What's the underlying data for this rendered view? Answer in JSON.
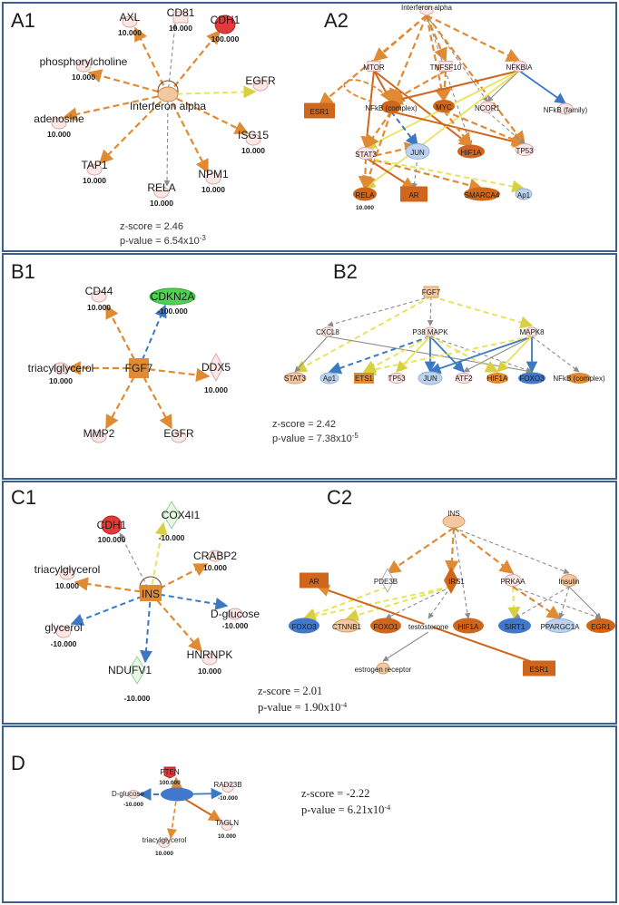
{
  "panels": {
    "A1": {
      "label": "A1",
      "hub": "Interferon alpha",
      "nodes": [
        "AXL",
        "CD81",
        "CDH1",
        "phosphorylcholine",
        "EGFR",
        "adenosine",
        "ISG15",
        "TAP1",
        "RELA",
        "NPM1"
      ],
      "values": {
        "AXL": "10.000",
        "CD81": "10.000",
        "CDH1": "100.000",
        "phosphorylcholine": "10.000",
        "adenosine": "10.000",
        "ISG15": "10.000",
        "TAP1": "10.000",
        "RELA": "10.000",
        "NPM1": "10.000"
      },
      "z_score": "z-score = 2.46",
      "p_value": "p-value = 6.54x10",
      "p_exp": "-3"
    },
    "A2": {
      "label": "A2",
      "nodes": [
        "Interferon alpha",
        "MTOR",
        "TNFSF10",
        "NFKBIA",
        "ESR1",
        "NFkB (complex)",
        "MYC",
        "NCOR1",
        "NFkB (family)",
        "JUN",
        "HIF1A",
        "TP53",
        "STAT3",
        "RELA",
        "AR",
        "SMARCA4",
        "Ap1"
      ],
      "values": {
        "RELA": "10.000"
      }
    },
    "B1": {
      "label": "B1",
      "hub": "FGF7",
      "nodes": [
        "CD44",
        "CDKN2A",
        "triacylglycerol",
        "DDX5",
        "MMP2",
        "EGFR"
      ],
      "values": {
        "CD44": "10.000",
        "CDKN2A": "-100.000",
        "triacylglycerol": "10.000",
        "DDX5": "10.000"
      }
    },
    "B2": {
      "label": "B2",
      "nodes": [
        "FGF7",
        "CXCL8",
        "P38 MAPK",
        "MAPK8",
        "STAT3",
        "Ap1",
        "ETS1",
        "TP53",
        "JUN",
        "ATF2",
        "HIF1A",
        "FOXO3",
        "NFkB (complex)"
      ],
      "z_score": "z-score = 2.42",
      "p_value": "p-value = 7.38x10",
      "p_exp": "-5"
    },
    "C1": {
      "label": "C1",
      "hub": "INS",
      "nodes": [
        "CDH1",
        "COX4I1",
        "CRABP2",
        "triacylglycerol",
        "D-glucose",
        "glycerol",
        "NDUFV1",
        "HNRNPK"
      ],
      "values": {
        "CDH1": "100.000",
        "COX4I1": "-10.000",
        "CRABP2": "10.000",
        "triacylglycerol": "10.000",
        "D-glucose": "-10.000",
        "glycerol": "-10.000",
        "NDUFV1": "-10.000",
        "HNRNPK": "10.000"
      }
    },
    "C2": {
      "label": "C2",
      "nodes": [
        "INS",
        "AR",
        "PDE3B",
        "IRS1",
        "PRKAA",
        "Insulin",
        "FOXO3",
        "CTNNB1",
        "FOXO1",
        "testosterone",
        "HIF1A",
        "SIRT1",
        "PPARGC1A",
        "EGR1",
        "estrogen receptor",
        "ESR1"
      ],
      "z_score": "z-score = 2.01",
      "p_value": "p-value = 1.90x10",
      "p_exp": "-4"
    },
    "D": {
      "label": "D",
      "hub": "INSR",
      "nodes": [
        "PTEN",
        "RAD23B",
        "D-glucose",
        "TAGLN",
        "triacylglycerol"
      ],
      "values": {
        "PTEN": "100.000",
        "RAD23B": "-10.000",
        "D-glucose": "-10.000",
        "TAGLN": "10.000",
        "triacylglycerol": "10.000"
      },
      "z_score": "z-score = -2.22",
      "p_value": "p-value = 6.21x10",
      "p_exp": "-4"
    }
  },
  "colors": {
    "border": "#3d5f8c",
    "orange": "#e08a33",
    "orange_dark": "#d0661c",
    "orange_light": "#f3c8a0",
    "yellow": "#e6e35c",
    "blue": "#3b79c5",
    "blue_node": "#3f78cc",
    "blue_light": "#bcd2ee",
    "gray": "#8c8c8c",
    "red": "#e03a3a",
    "green": "#4fd24f",
    "pink": "#fbe7e6",
    "pink_border": "#d9a3a0",
    "green_border": "#8fcf8f"
  }
}
